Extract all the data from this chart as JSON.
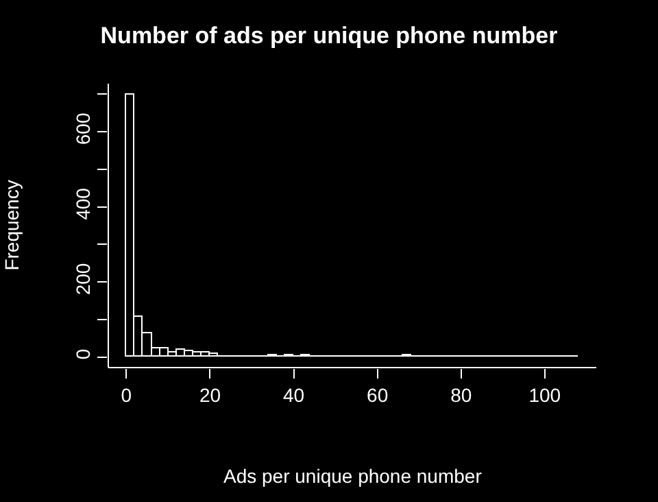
{
  "chart_data": {
    "type": "histogram",
    "title": "Number of ads per unique phone number",
    "xlabel": "Ads per unique phone number",
    "ylabel": "Frequency",
    "bins": [
      0,
      2,
      4,
      6,
      8,
      10,
      12,
      14,
      16,
      18,
      20,
      22,
      24,
      26,
      28,
      30,
      32,
      34,
      36,
      38,
      40,
      42,
      44,
      46,
      48,
      50,
      52,
      54,
      56,
      58,
      60,
      62,
      64,
      66,
      68,
      70,
      72,
      74,
      76,
      78,
      80,
      82,
      84,
      86,
      88,
      90,
      92,
      94,
      96,
      98,
      100,
      102,
      104,
      106,
      108
    ],
    "values": [
      700,
      107,
      63,
      22,
      22,
      13,
      18,
      15,
      11,
      11,
      7,
      2,
      1,
      3,
      2,
      1,
      2,
      4,
      2,
      4,
      1,
      4,
      1,
      1,
      3,
      1,
      3,
      1,
      1,
      1,
      0,
      1,
      2,
      5,
      2,
      1,
      1,
      3,
      1,
      3,
      1,
      0,
      1,
      3,
      1,
      0,
      0,
      0,
      1,
      0,
      0,
      0,
      1,
      2
    ],
    "color": "#ffffff",
    "xlim": [
      -4.32,
      112.32
    ],
    "ylim": [
      -28,
      728
    ],
    "xticks": [
      0,
      20,
      40,
      60,
      80,
      100
    ],
    "yticks": [
      0,
      {
        "value": 100,
        "label": null
      },
      200,
      {
        "value": 300,
        "label": null
      },
      400,
      {
        "value": 500,
        "label": null
      },
      600,
      {
        "value": 700,
        "label": null
      }
    ]
  }
}
